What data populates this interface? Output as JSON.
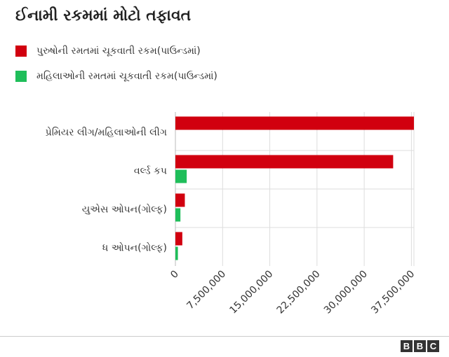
{
  "chart_data": {
    "type": "bar",
    "orientation": "horizontal",
    "title": "ઈનામી રકમમાં મોટો તફાવત",
    "categories": [
      "પ્રેમિયર લીગ/મહિલાઓની લીગ",
      "વર્લ્ડ કપ",
      "યુએસ ઓપન(ગોલ્ફ)",
      "ધ ઓપન(ગોલ્ફ)"
    ],
    "series": [
      {
        "name": "પુરુષોની રમતમાં ચૂકવાતી રકમ(પાઉન્ડમાં)",
        "color": "#d1000f",
        "values": [
          37900000,
          34600000,
          1500000,
          1100000
        ]
      },
      {
        "name": "મહિલાઓની રમતમાં ચૂકવાતી રકમ(પાઉન્ડમાં)",
        "color": "#1fbe5a",
        "values": [
          0,
          1800000,
          800000,
          400000
        ]
      }
    ],
    "x_ticks": [
      0,
      7500000,
      15000000,
      22500000,
      30000000,
      37500000
    ],
    "x_tick_labels": [
      "0",
      "7,500,000",
      "15,000,000",
      "22,500,000",
      "30,000,000",
      "37,500,000"
    ],
    "xlim": [
      0,
      37900000
    ],
    "grid": true,
    "legend_position": "top-left"
  },
  "brand": {
    "letters": [
      "B",
      "B",
      "C"
    ]
  }
}
